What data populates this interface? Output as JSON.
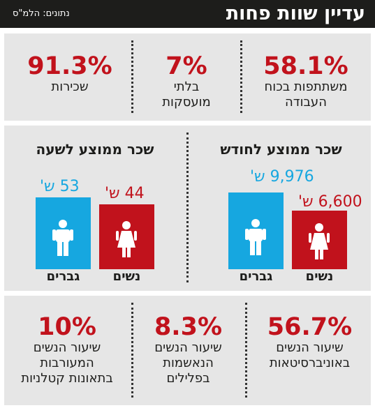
{
  "header": {
    "title": "עדיין שוות פחות",
    "source": "נתונים: הלמ\"ס"
  },
  "top_stats": [
    {
      "value": "58.1%",
      "label_lines": [
        "משתתפות בכוח",
        "העבודה"
      ]
    },
    {
      "value": "7%",
      "label_lines": [
        "בלתי",
        "מועסקות"
      ]
    },
    {
      "value": "91.3%",
      "label_lines": [
        "שכירות"
      ]
    }
  ],
  "monthly": {
    "title": "שכר ממוצע לחודש",
    "women": {
      "value": "6,600 ש'",
      "label": "נשים",
      "icon": "woman-icon"
    },
    "men": {
      "value": "9,976 ש'",
      "label": "גברים",
      "icon": "man-icon"
    }
  },
  "hourly": {
    "title": "שכר ממוצע לשעה",
    "women": {
      "value": "44 ש'",
      "label": "נשים",
      "icon": "woman-icon"
    },
    "men": {
      "value": "53 ש'",
      "label": "גברים",
      "icon": "man-icon"
    }
  },
  "bottom_stats": [
    {
      "value": "56.7%",
      "label_lines": [
        "שיעור הנשים",
        "באוניברסיטאות"
      ]
    },
    {
      "value": "8.3%",
      "label_lines": [
        "שיעור הנשים",
        "הנאשמות",
        "בפלילים"
      ]
    },
    {
      "value": "10%",
      "label_lines": [
        "שיעור הנשים",
        "המעורבות",
        "בתאונות קטלניות"
      ]
    }
  ],
  "colors": {
    "accent_red": "#c1121c",
    "accent_blue": "#16a7e0",
    "header_bg": "#1d1d1b",
    "panel_bg": "#e6e6e6"
  }
}
